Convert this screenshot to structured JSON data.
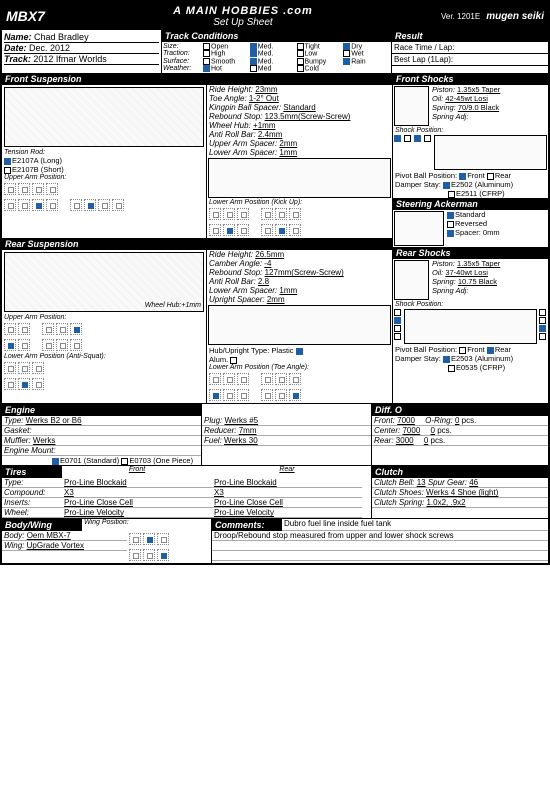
{
  "header": {
    "logo_left": "MBX7",
    "title": "A MAIN HOBBIES .com",
    "subtitle": "Set Up Sheet",
    "version": "Ver. 1201E",
    "logo_right": "mugen seiki"
  },
  "info": {
    "name_label": "Name:",
    "name": "Chad Bradley",
    "date_label": "Date:",
    "date": "Dec. 2012",
    "track_label": "Track:",
    "track": "2012 Ifmar Worlds"
  },
  "track_conditions": {
    "title": "Track Conditions",
    "rows": [
      {
        "label": "Size:",
        "opts": [
          "Open",
          "Med.",
          "Tight",
          ""
        ]
      },
      {
        "label": "Traction:",
        "opts": [
          "High",
          "Med.",
          "Low",
          ""
        ]
      },
      {
        "label": "Surface:",
        "opts": [
          "Smooth",
          "Med.",
          "Bumpy",
          ""
        ]
      },
      {
        "label": "Weather:",
        "opts": [
          "Hot",
          "Med",
          "Cold",
          ""
        ]
      }
    ],
    "extra": [
      "Dry",
      "Wet",
      "Rain"
    ],
    "checked": {
      "Size": 1,
      "Traction": 1,
      "Surface": 1,
      "Weather": 0,
      "ext": 0
    }
  },
  "result": {
    "title": "Result",
    "l1": "Race Time / Lap:",
    "l2": "Best Lap (1Lap):"
  },
  "front_susp": {
    "title": "Front Suspension",
    "specs": [
      {
        "l": "Ride Height:",
        "v": "23mm"
      },
      {
        "l": "Toe Angle:",
        "v": "1-2° Out"
      },
      {
        "l": "Kingpin Ball Spacer:",
        "v": "Standard"
      },
      {
        "l": "Rebound Stop:",
        "v": "123.5mm(Screw-Screw)"
      },
      {
        "l": "Wheel Hub:",
        "v": "+1mm"
      },
      {
        "l": "Anti Roll Bar:",
        "v": "2.4mm"
      },
      {
        "l": "Upper Arm Spacer:",
        "v": "2mm"
      },
      {
        "l": "Lower Arm Spacer:",
        "v": "1mm"
      }
    ],
    "tension_label": "Tension Rod:",
    "tension_opts": [
      "E2107A (Long)",
      "E2107B (Short)"
    ],
    "upper_label": "Upper Arm Position:",
    "lower_label": "Lower Arm Position (Kick Up):"
  },
  "front_shocks": {
    "title": "Front Shocks",
    "specs": [
      {
        "l": "Piston:",
        "v": "1.35x5 Taper"
      },
      {
        "l": "Oil:",
        "v": "42-45wt Losi"
      },
      {
        "l": "Spring:",
        "v": "70/9.0 Black"
      },
      {
        "l": "Spring Adj:",
        "v": ""
      }
    ],
    "shock_pos": "Shock Position:",
    "pivot": "Pivot Ball Position:",
    "pivot_opts": [
      "Front",
      "Rear"
    ],
    "damper": "Damper Stay:",
    "damper_opts": [
      "E2502 (Aluminum)",
      "E2511 (CFRP)"
    ]
  },
  "steering": {
    "title": "Steering Ackerman",
    "opts": [
      "Standard",
      "Reversed",
      "Spacer: 0mm"
    ]
  },
  "rear_susp": {
    "title": "Rear Suspension",
    "specs": [
      {
        "l": "Ride Height:",
        "v": "26.5mm"
      },
      {
        "l": "Camber Angle:",
        "v": "-4"
      },
      {
        "l": "Rebound Stop:",
        "v": "127mm(Screw-Screw)"
      },
      {
        "l": "Anti Roll Bar:",
        "v": "2.8"
      },
      {
        "l": "Lower Arm Spacer:",
        "v": "1mm"
      },
      {
        "l": "Upright Spacer:",
        "v": "2mm"
      }
    ],
    "wheel_hub": "Wheel Hub:+1mm",
    "upper_label": "Upper Arm Position:",
    "lower_label": "Lower Arm Position (Anti-Squat):",
    "hub_type": "Hub/Upright Type: Plastic",
    "hub_opts": [
      "Alum."
    ],
    "lower_toe": "Lower Arm Position (Toe Angle):"
  },
  "rear_shocks": {
    "title": "Rear Shocks",
    "specs": [
      {
        "l": "Piston:",
        "v": "1.35x5 Taper"
      },
      {
        "l": "Oil:",
        "v": "37-40wt Losi"
      },
      {
        "l": "Spring:",
        "v": "10.75 Black"
      },
      {
        "l": "Spring Adj:",
        "v": ""
      }
    ],
    "shock_pos": "Shock Position:",
    "pivot": "Pivot Ball Position:",
    "pivot_opts": [
      "Front",
      "Rear"
    ],
    "damper": "Damper Stay:",
    "damper_opts": [
      "E2503 (Aluminum)",
      "E0535 (CFRP)"
    ]
  },
  "engine": {
    "title": "Engine",
    "left": [
      {
        "l": "Type:",
        "v": "Werks B2 or B6"
      },
      {
        "l": "Gasket:",
        "v": ""
      },
      {
        "l": "Muffler:",
        "v": "Werks"
      },
      {
        "l": "Engine Mount:",
        "v": ""
      }
    ],
    "mount_opts": [
      "E0701 (Standard)",
      "E0703 (One Piece)"
    ],
    "mid": [
      {
        "l": "Plug:",
        "v": "Werks #5"
      },
      {
        "l": "Reducer:",
        "v": "7mm"
      },
      {
        "l": "Fuel:",
        "v": "Werks 30"
      }
    ]
  },
  "diff": {
    "title": "Diff. O",
    "rows": [
      {
        "l": "Front:",
        "v": "7000",
        "o": "O-Ring:",
        "c": "0",
        "u": "pcs."
      },
      {
        "l": "Center:",
        "v": "7000",
        "o": "",
        "c": "0",
        "u": "pcs."
      },
      {
        "l": "Rear:",
        "v": "3000",
        "o": "",
        "c": "0",
        "u": "pcs."
      }
    ]
  },
  "tires": {
    "title": "Tires",
    "front_h": "Front",
    "rear_h": "Rear",
    "rows": [
      {
        "l": "Type:",
        "f": "Pro-Line Blockaid",
        "r": "Pro-Line Blockaid"
      },
      {
        "l": "Compound:",
        "f": "X3",
        "r": "X3"
      },
      {
        "l": "Inserts:",
        "f": "Pro-Line Close Cell",
        "r": "Pro-Line Close Cell"
      },
      {
        "l": "Wheel:",
        "f": "Pro-Line Velocity",
        "r": "Pro-Line Velocity"
      }
    ]
  },
  "clutch": {
    "title": "Clutch",
    "rows": [
      {
        "l": "Clutch Bell:",
        "v": "13",
        "l2": "Spur Gear:",
        "v2": "46"
      },
      {
        "l": "Clutch Shoes:",
        "v": "Werks 4 Shoe (light)"
      },
      {
        "l": "Clutch Spring:",
        "v": "1.0x2, .9x2"
      }
    ]
  },
  "body": {
    "title": "Body/Wing",
    "rows": [
      {
        "l": "Body:",
        "v": "Oem MBX-7"
      },
      {
        "l": "Wing:",
        "v": "UpGrade Vortex"
      }
    ],
    "wing_pos": "Wing Position:"
  },
  "comments": {
    "title": "Comments:",
    "lines": [
      "Dubro fuel line inside fuel tank",
      "Droop/Rebound stop measured from upper and lower shock screws"
    ]
  },
  "colors": {
    "accent": "#1e5fa8",
    "black": "#000000"
  }
}
